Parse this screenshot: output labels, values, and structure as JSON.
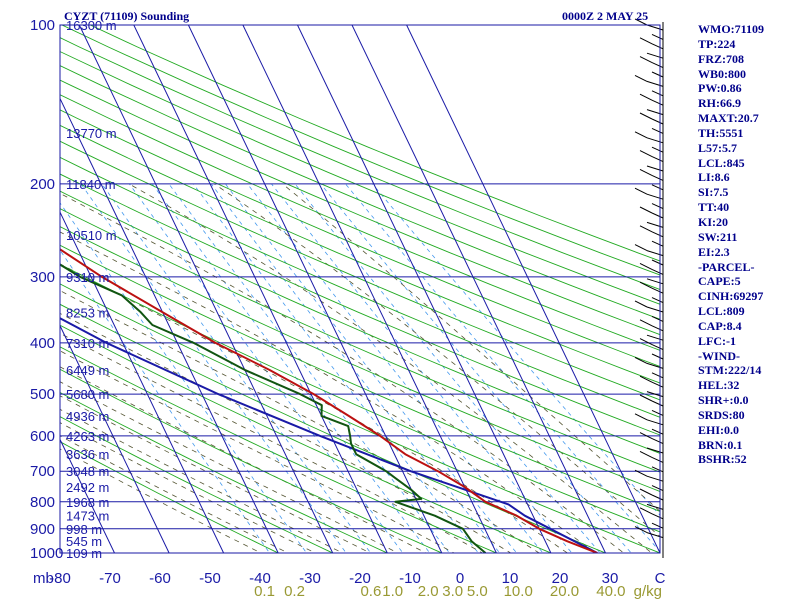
{
  "header": {
    "station": "CYZT (71109) Sounding",
    "time": "0000Z  2 MAY 25"
  },
  "stats": [
    "WMO:71109",
    "TP:224",
    "FRZ:708",
    "WB0:800",
    "PW:0.86",
    "RH:66.9",
    "MAXT:20.7",
    "TH:5551",
    "L57:5.7",
    "LCL:845",
    "LI:8.6",
    "SI:7.5",
    "TT:40",
    "KI:20",
    "SW:211",
    "EI:2.3",
    "-PARCEL-",
    "CAPE:5",
    "CINH:69297",
    "LCL:809",
    "CAP:8.4",
    "LFC:-1",
    "-WIND-",
    "STM:222/14",
    "HEL:32",
    "SHR+:0.0",
    "SRDS:80",
    "EHI:0.0",
    "BRN:0.1",
    "BSHR:52"
  ],
  "chart_data": {
    "type": "skew-t",
    "pressure_unit_label": "mb",
    "pressure_levels": [
      100,
      200,
      300,
      400,
      500,
      600,
      700,
      800,
      900,
      1000
    ],
    "pressure_range": [
      100,
      1000
    ],
    "temperature_ticks": [
      "-80",
      "-70",
      "-60",
      "-50",
      "-40",
      "-30",
      "-20",
      "-10",
      "0",
      "10",
      "20",
      "30",
      "C"
    ],
    "temperature_range": [
      -80,
      30
    ],
    "height_labels": [
      {
        "p": 100,
        "label": "16300 m"
      },
      {
        "p": 160,
        "label": "13770 m"
      },
      {
        "p": 200,
        "label": "11840 m"
      },
      {
        "p": 250,
        "label": "10510 m"
      },
      {
        "p": 300,
        "label": "9310 m"
      },
      {
        "p": 350,
        "label": "8253 m"
      },
      {
        "p": 400,
        "label": "7310 m"
      },
      {
        "p": 450,
        "label": "6449 m"
      },
      {
        "p": 500,
        "label": "5680 m"
      },
      {
        "p": 550,
        "label": "4936 m"
      },
      {
        "p": 600,
        "label": "4263 m"
      },
      {
        "p": 650,
        "label": "3636 m"
      },
      {
        "p": 700,
        "label": "3048 m"
      },
      {
        "p": 750,
        "label": "2492 m"
      },
      {
        "p": 800,
        "label": "1968 m"
      },
      {
        "p": 850,
        "label": "1473 m"
      },
      {
        "p": 900,
        "label": "998 m"
      },
      {
        "p": 950,
        "label": "545 m"
      },
      {
        "p": 1000,
        "label": "109 m"
      }
    ],
    "mixing_ratio_ticks": [
      {
        "label": "0.1",
        "t": -42.5
      },
      {
        "label": "0.2",
        "t": -37
      },
      {
        "label": "0.6",
        "t": -23
      },
      {
        "label": "1.0",
        "t": -19
      },
      {
        "label": "2.0",
        "t": -12.5
      },
      {
        "label": "3.0",
        "t": -8
      },
      {
        "label": "5.0",
        "t": -3.5
      },
      {
        "label": "10.0",
        "t": 4
      },
      {
        "label": "20.0",
        "t": 12.5
      },
      {
        "label": "40.0",
        "t": 21
      }
    ],
    "mixing_ratio_unit": "g/kg",
    "temperature_profile": [
      [
        1000,
        18.5
      ],
      [
        950,
        14
      ],
      [
        900,
        10
      ],
      [
        850,
        7
      ],
      [
        800,
        2.5
      ],
      [
        750,
        0
      ],
      [
        700,
        -3.5
      ],
      [
        650,
        -8
      ],
      [
        600,
        -11
      ],
      [
        550,
        -15
      ],
      [
        500,
        -19.5
      ],
      [
        450,
        -25.5
      ],
      [
        400,
        -33
      ],
      [
        350,
        -40
      ],
      [
        300,
        -48
      ],
      [
        250,
        -56
      ],
      [
        224,
        -58
      ],
      [
        210,
        -56
      ],
      [
        200,
        -56.5
      ],
      [
        150,
        -58.5
      ],
      [
        120,
        -60.5
      ],
      [
        100,
        -61.5
      ]
    ],
    "dewpoint_profile": [
      [
        1000,
        -2
      ],
      [
        950,
        -3.5
      ],
      [
        900,
        -4
      ],
      [
        850,
        -8
      ],
      [
        800,
        -14
      ],
      [
        790,
        -9
      ],
      [
        760,
        -10
      ],
      [
        720,
        -12
      ],
      [
        700,
        -13
      ],
      [
        650,
        -17
      ],
      [
        620,
        -17
      ],
      [
        600,
        -16.5
      ],
      [
        575,
        -16
      ],
      [
        550,
        -20
      ],
      [
        525,
        -19
      ],
      [
        500,
        -22
      ],
      [
        450,
        -30
      ],
      [
        400,
        -37
      ],
      [
        370,
        -43
      ],
      [
        350,
        -44
      ],
      [
        325,
        -46
      ],
      [
        300,
        -52
      ],
      [
        260,
        -59
      ],
      [
        240,
        -65
      ],
      [
        220,
        -64
      ],
      [
        210,
        -72
      ],
      [
        200,
        -80
      ],
      [
        180,
        -81
      ]
    ],
    "parcel_profile": [
      [
        1000,
        18.5
      ],
      [
        850,
        8.5
      ],
      [
        809,
        6.5
      ],
      [
        700,
        -8.5
      ],
      [
        600,
        -22
      ],
      [
        500,
        -37
      ],
      [
        400,
        -53
      ],
      [
        300,
        -70
      ],
      [
        200,
        -93
      ]
    ]
  }
}
